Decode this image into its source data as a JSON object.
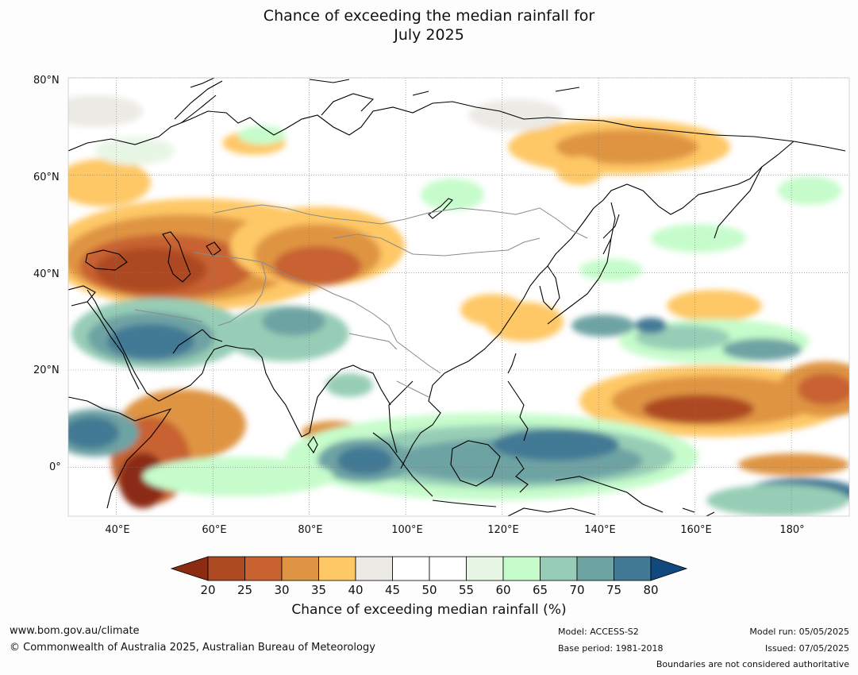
{
  "title": {
    "line1": "Chance of exceeding the median rainfall for",
    "line2": "July 2025"
  },
  "map": {
    "lat_labels": [
      "80°N",
      "60°N",
      "40°N",
      "20°N",
      "0°"
    ],
    "lon_labels": [
      "40°E",
      "60°E",
      "80°E",
      "100°E",
      "120°E",
      "140°E",
      "160°E",
      "180°"
    ],
    "extent": {
      "lon": [
        30,
        192
      ],
      "lat": [
        -10,
        80
      ]
    },
    "gridlines": true
  },
  "colorbar": {
    "title": "Chance of exceeding median rainfall (%)",
    "ticks": [
      "20",
      "25",
      "30",
      "35",
      "40",
      "45",
      "50",
      "55",
      "60",
      "65",
      "70",
      "75",
      "80"
    ],
    "colors": [
      "#8b2c12",
      "#ad4a22",
      "#c86230",
      "#df9443",
      "#fec866",
      "#eceae4",
      "#ffffff",
      "#ffffff",
      "#e8f6e6",
      "#c6fccb",
      "#97cdb6",
      "#6ea3a4",
      "#427994",
      "#11487d"
    ]
  },
  "footer": {
    "website": "www.bom.gov.au/climate",
    "copyright": "© Commonwealth of Australia 2025, Australian Bureau of Meteorology",
    "model": "Model: ACCESS-S2",
    "base_period": "Base period: 1981-2018",
    "model_run": "Model run: 05/05/2025",
    "issued": "Issued: 07/05/2025",
    "disclaimer": "Boundaries are not considered authoritative"
  }
}
